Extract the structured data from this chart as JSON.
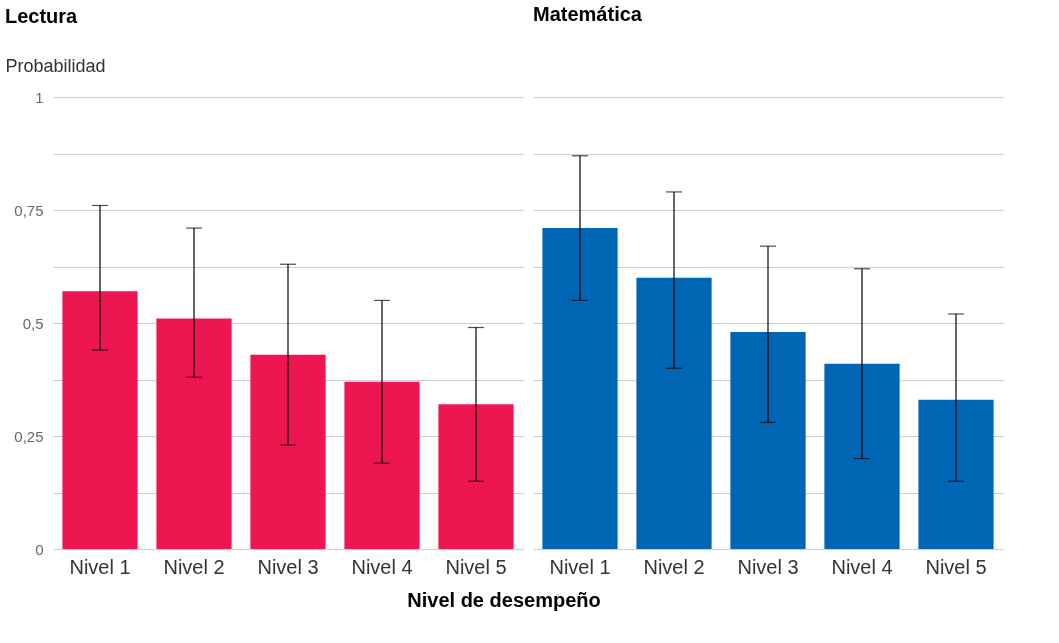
{
  "chart_data": [
    {
      "type": "bar",
      "title": "Lectura",
      "ylabel": "Probabilidad",
      "xlabel": "Nivel de desempeño",
      "categories": [
        "Nivel 1",
        "Nivel 2",
        "Nivel 3",
        "Nivel 4",
        "Nivel 5"
      ],
      "values": [
        0.57,
        0.51,
        0.43,
        0.37,
        0.32
      ],
      "color": "#ee1651",
      "errors": [
        [
          0.44,
          0.76
        ],
        [
          0.38,
          0.71
        ],
        [
          0.23,
          0.63
        ],
        [
          0.19,
          0.55
        ],
        [
          0.15,
          0.49
        ]
      ],
      "ylim": [
        0,
        1
      ],
      "yticks": [
        0,
        {
          "value": 0.125,
          "label": null
        },
        {
          "value": 0.25,
          "label": "0,25"
        },
        {
          "value": 0.375,
          "label": null
        },
        {
          "value": 0.5,
          "label": "0,5"
        },
        {
          "value": 0.625,
          "label": null
        },
        {
          "value": 0.75,
          "label": "0,75"
        },
        {
          "value": 0.875,
          "label": null
        },
        1
      ],
      "grid": "y",
      "legend": false
    },
    {
      "type": "bar",
      "title": "Matemática",
      "categories": [
        "Nivel 1",
        "Nivel 2",
        "Nivel 3",
        "Nivel 4",
        "Nivel 5"
      ],
      "values": [
        0.71,
        0.6,
        0.48,
        0.41,
        0.33
      ],
      "color": "#0065b3",
      "errors": [
        [
          0.55,
          0.87
        ],
        [
          0.4,
          0.79
        ],
        [
          0.28,
          0.67
        ],
        [
          0.2,
          0.62
        ],
        [
          0.15,
          0.52
        ]
      ],
      "ylim": [
        0,
        1
      ],
      "yticks": [
        {
          "value": 0,
          "label": null
        },
        {
          "value": 0.125,
          "label": null
        },
        {
          "value": 0.25,
          "label": null
        },
        {
          "value": 0.375,
          "label": null
        },
        {
          "value": 0.5,
          "label": null
        },
        {
          "value": 0.625,
          "label": null
        },
        {
          "value": 0.75,
          "label": null
        },
        {
          "value": 0.875,
          "label": null
        },
        {
          "value": 1,
          "label": null
        }
      ],
      "grid": "y",
      "legend": false,
      "tick_labels": "x"
    }
  ]
}
